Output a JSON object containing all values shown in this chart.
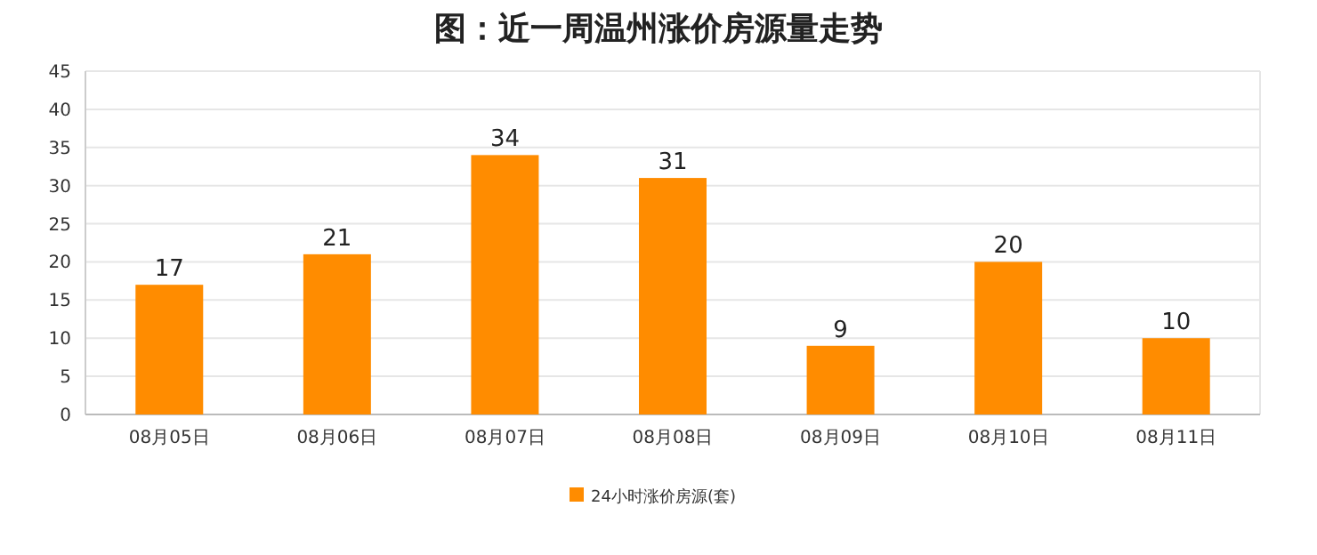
{
  "chart_data": {
    "type": "bar",
    "title": "图：近一周温州涨价房源量走势",
    "categories": [
      "08月05日",
      "08月06日",
      "08月07日",
      "08月08日",
      "08月09日",
      "08月10日",
      "08月11日"
    ],
    "series": [
      {
        "name": "24小时涨价房源(套)",
        "color": "#ff8c00",
        "values": [
          17,
          21,
          34,
          31,
          9,
          20,
          10
        ]
      }
    ],
    "ylim": [
      0,
      45
    ],
    "yticks": [
      0,
      5,
      10,
      15,
      20,
      25,
      30,
      35,
      40,
      45
    ],
    "grid": "y",
    "legend": "bottom",
    "data_labels": true
  }
}
